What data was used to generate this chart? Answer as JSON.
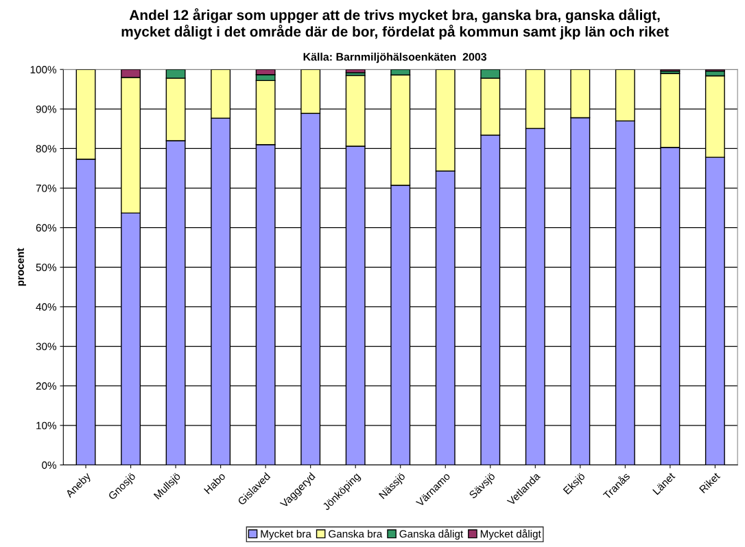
{
  "chart_data": {
    "type": "bar",
    "stacked": true,
    "title": "Andel 12 årigar som uppger att de trivs mycket bra, ganska bra, ganska dåligt,\nmycket dåligt i det område där de bor, fördelat på kommun samt jkp län och riket",
    "subtitle": "Källa: Barnmiljöhälsoenkäten  2003",
    "ylabel": "procent",
    "categories": [
      "Aneby",
      "Gnosjö",
      "Mullsjö",
      "Habo",
      "Gislaved",
      "Vaggeryd",
      "Jönköping",
      "Nässjö",
      "Värnamo",
      "Sävsjö",
      "Vetlanda",
      "Eksjö",
      "Tranås",
      "Länet",
      "Riket"
    ],
    "series": [
      {
        "name": "Mycket bra",
        "color": "#9999ff",
        "values": [
          77.3,
          63.7,
          82.0,
          87.7,
          81.0,
          88.9,
          80.6,
          70.7,
          74.3,
          83.4,
          85.1,
          87.8,
          87.0,
          80.3,
          77.8
        ]
      },
      {
        "name": "Ganska bra",
        "color": "#ffff99",
        "values": [
          22.7,
          34.3,
          15.8,
          12.3,
          16.2,
          11.1,
          17.9,
          27.9,
          25.7,
          14.4,
          14.9,
          12.2,
          13.0,
          18.7,
          20.6
        ]
      },
      {
        "name": "Ganska dåligt",
        "color": "#339966",
        "values": [
          null,
          null,
          2.2,
          null,
          1.5,
          null,
          0.7,
          1.4,
          null,
          2.2,
          null,
          null,
          null,
          0.6,
          1.2
        ]
      },
      {
        "name": "Mycket dåligt",
        "color": "#993366",
        "values": [
          null,
          2.0,
          null,
          null,
          1.3,
          null,
          0.8,
          null,
          null,
          null,
          null,
          null,
          null,
          0.4,
          0.4
        ]
      }
    ],
    "ylim": [
      0,
      100
    ],
    "yticks": [
      {
        "value": 0,
        "label": "0%"
      },
      {
        "value": 10,
        "label": "10%"
      },
      {
        "value": 20,
        "label": "20%"
      },
      {
        "value": 30,
        "label": "30%"
      },
      {
        "value": 40,
        "label": "40%"
      },
      {
        "value": 50,
        "label": "50%"
      },
      {
        "value": 60,
        "label": "60%"
      },
      {
        "value": 70,
        "label": "70%"
      },
      {
        "value": 80,
        "label": "80%"
      },
      {
        "value": 90,
        "label": "90%"
      },
      {
        "value": 100,
        "label": "100%"
      }
    ],
    "grid": "y",
    "legend": "bottom"
  }
}
